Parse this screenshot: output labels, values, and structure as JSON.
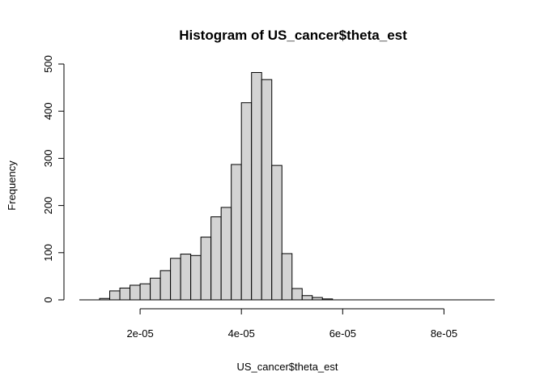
{
  "chart_data": {
    "type": "bar",
    "title": "Histogram of US_cancer$theta_est",
    "xlabel": "US_cancer$theta_est",
    "ylabel": "Frequency",
    "x_ticks": [
      {
        "value": 2e-05,
        "label": "2e-05"
      },
      {
        "value": 4e-05,
        "label": "4e-05"
      },
      {
        "value": 6e-05,
        "label": "6e-05"
      },
      {
        "value": 8e-05,
        "label": "8e-05"
      }
    ],
    "y_ticks": [
      {
        "value": 0,
        "label": "0"
      },
      {
        "value": 100,
        "label": "100"
      },
      {
        "value": 200,
        "label": "200"
      },
      {
        "value": 300,
        "label": "300"
      },
      {
        "value": 400,
        "label": "400"
      },
      {
        "value": 500,
        "label": "500"
      }
    ],
    "bin_width": 2e-06,
    "bins_start": [
      1.2e-05,
      1.4e-05,
      1.6e-05,
      1.8e-05,
      2e-05,
      2.2e-05,
      2.4e-05,
      2.6e-05,
      2.8e-05,
      3e-05,
      3.2e-05,
      3.4e-05,
      3.6e-05,
      3.8e-05,
      4e-05,
      4.2e-05,
      4.4e-05,
      4.6e-05,
      4.8e-05,
      5e-05,
      5.2e-05,
      5.4e-05,
      5.6e-05
    ],
    "values": [
      3,
      19,
      25,
      31,
      34,
      46,
      62,
      88,
      97,
      94,
      133,
      176,
      196,
      287,
      418,
      482,
      467,
      285,
      98,
      24,
      9,
      5,
      2
    ],
    "xlim": [
      8e-06,
      9e-05
    ],
    "ylim": [
      0,
      500
    ],
    "bar_fill": "#d3d3d3",
    "bar_stroke": "#000000",
    "grid": false,
    "legend": "none"
  }
}
